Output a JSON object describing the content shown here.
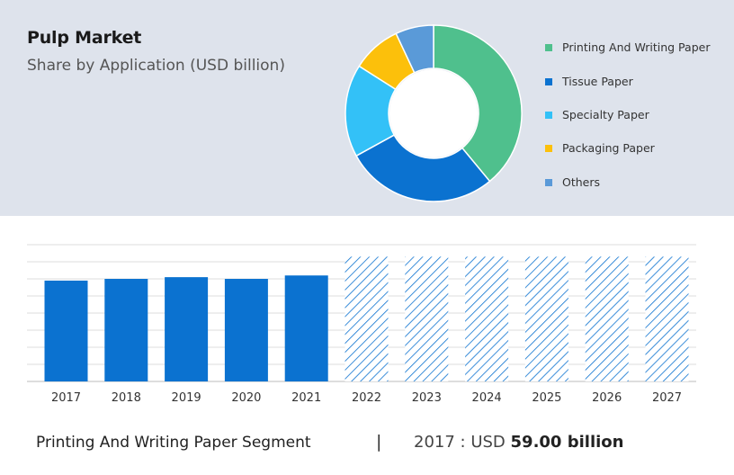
{
  "header": {
    "title": "Pulp Market",
    "subtitle": "Share by Application (USD billion)"
  },
  "footer": {
    "segment_label": "Printing And Writing Paper Segment",
    "separator": "|",
    "year_prefix": "2017 : USD",
    "value_text": "59.00 billion"
  },
  "chart_data": [
    {
      "type": "pie",
      "variant": "donut",
      "title": "Share by Application (USD billion)",
      "legend_position": "right",
      "categories": [
        "Printing And Writing Paper",
        "Tissue Paper",
        "Specialty Paper",
        "Packaging Paper",
        "Others"
      ],
      "values": [
        39,
        28,
        17,
        9,
        7
      ],
      "colors": [
        "#4fc08d",
        "#0b72d0",
        "#33c1f7",
        "#fcc00b",
        "#5a9ad8"
      ]
    },
    {
      "type": "bar",
      "categories": [
        "2017",
        "2018",
        "2019",
        "2020",
        "2021",
        "2022",
        "2023",
        "2024",
        "2025",
        "2026",
        "2027"
      ],
      "values": [
        59,
        60,
        61,
        60,
        62,
        73,
        73,
        73,
        73,
        73,
        73
      ],
      "forecast_from": "2022",
      "ylim": [
        0,
        80
      ],
      "grid": true,
      "colors": {
        "actual": "#0b72d0",
        "forecast_hatch": "#0b72d0"
      }
    }
  ]
}
